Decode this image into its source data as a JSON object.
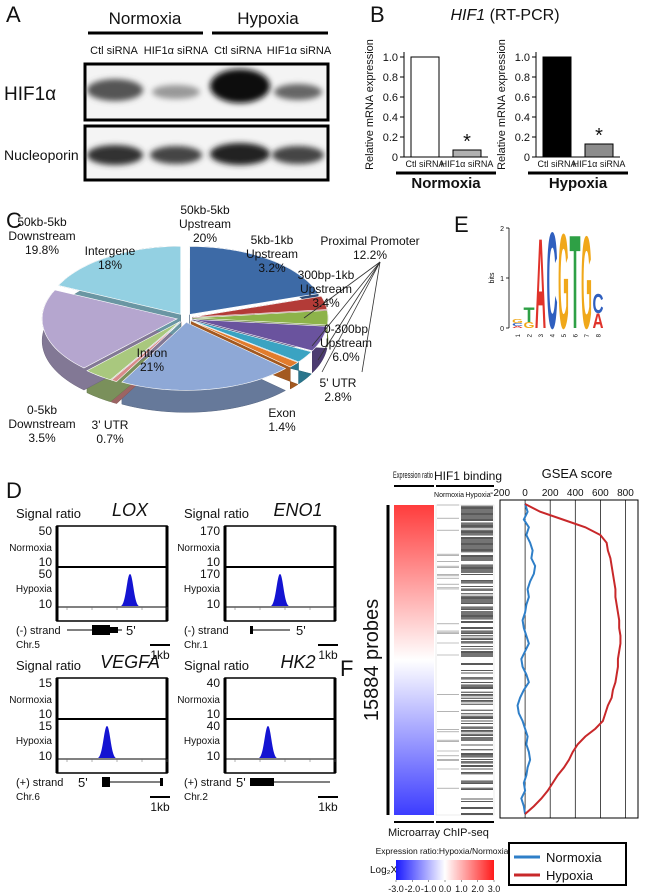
{
  "panel_labels": [
    "A",
    "B",
    "C",
    "D",
    "E",
    "F"
  ],
  "blot": {
    "conditions": [
      "Normoxia",
      "Hypoxia"
    ],
    "lanes": [
      "Ctl siRNA",
      "HIF1α siRNA",
      "Ctl siRNA",
      "HIF1α siRNA"
    ],
    "rows": [
      "HIF1α",
      "Nucleoporin"
    ]
  },
  "rtpcr_title": {
    "gene": "HIF1",
    "method": "(RT-PCR)"
  },
  "tracks": [
    {
      "gene": "LOX",
      "normoxia_ticks": [
        50,
        10
      ],
      "hypoxia_ticks": [
        50,
        10
      ],
      "strand": "(-) strand",
      "chr": "Chr.5"
    },
    {
      "gene": "ENO1",
      "normoxia_ticks": [
        170,
        10
      ],
      "hypoxia_ticks": [
        170,
        10
      ],
      "strand": "(-) strand",
      "chr": "Chr.1"
    },
    {
      "gene": "VEGFA",
      "normoxia_ticks": [
        15,
        10
      ],
      "hypoxia_ticks": [
        15,
        10
      ],
      "strand": "(+) strand",
      "chr": "Chr.6"
    },
    {
      "gene": "HK2",
      "normoxia_ticks": [
        40,
        10
      ],
      "hypoxia_ticks": [
        40,
        10
      ],
      "strand": "(+) strand",
      "chr": "Chr.2"
    }
  ],
  "track_labels": {
    "signal": "Signal ratio",
    "normoxia": "Normoxia",
    "hypoxia": "Hypoxia",
    "five_prime": "5'",
    "scale": "1kb"
  },
  "heatmap": {
    "expression_header": "Expression ratio",
    "binding_header": "HIF1 binding",
    "binding_columns": [
      "Normoxia",
      "Hypoxia"
    ],
    "probes": "15884 probes",
    "footers": [
      "Microarray",
      "ChIP-seq"
    ]
  },
  "chart_data": [
    {
      "type": "bar",
      "ylabel": "Relative mRNA expression",
      "categories": [
        "Ctl siRNA",
        "HIF1α siRNA"
      ],
      "values": [
        1.0,
        0.07
      ],
      "colors": [
        "#ffffff",
        "#b0b0b0"
      ],
      "ylim": [
        0,
        1.05
      ],
      "yticks": [
        0,
        0.2,
        0.4,
        0.6,
        0.8,
        {
          "value": 1,
          "label": "1.0"
        }
      ],
      "group": "Normoxia",
      "annotation": "*"
    },
    {
      "type": "bar",
      "ylabel": "Relative mRNA expression",
      "categories": [
        "Ctl siRNA",
        "HIF1α siRNA"
      ],
      "values": [
        1.0,
        0.13
      ],
      "colors": [
        "#000000",
        "#8c8c8c"
      ],
      "ylim": [
        0,
        1.05
      ],
      "yticks": [
        0,
        0.2,
        0.4,
        0.6,
        0.8,
        {
          "value": 1,
          "label": "1.0"
        }
      ],
      "group": "Hypoxia",
      "annotation": "*"
    },
    {
      "type": "pie",
      "categories": [
        "50kb-5kb Upstream",
        "5kb-1kb Upstream",
        "300bp-1kb Upstream",
        "0-300bp Upstream",
        "5' UTR",
        "Exon",
        "Intron",
        "3' UTR",
        "0-5kb Downstream",
        "50kb-5kb Downstream",
        "Intergene"
      ],
      "values": [
        20,
        3.2,
        3.4,
        6.0,
        2.8,
        1.4,
        21,
        0.7,
        3.5,
        19.8,
        18
      ],
      "value_labels": [
        "20%",
        "3.2%",
        "3.4%",
        "6.0%",
        "2.8%",
        "1.4%",
        "21%",
        "0.7%",
        "3.5%",
        "19.8%",
        "18%"
      ],
      "colors": [
        "#3d6aa6",
        "#b33b37",
        "#8db34a",
        "#6a539e",
        "#3aa3c2",
        "#e27c2c",
        "#8ea8d6",
        "#d88b8a",
        "#a9c87e",
        "#b5a6cf",
        "#93d0e2"
      ],
      "annotation": {
        "text": "Proximal Promoter",
        "value_label": "12.2%"
      }
    },
    {
      "type": "logo",
      "ylabel": "bits",
      "ylim": [
        0,
        2
      ],
      "yticks": [
        0,
        1,
        2
      ],
      "categories": [
        "1",
        "2",
        "3",
        "4",
        "5",
        "6",
        "7",
        "8"
      ],
      "stacks": [
        [
          {
            "letter": "A",
            "height": 0.04
          },
          {
            "letter": "C",
            "height": 0.06
          },
          {
            "letter": "G",
            "height": 0.08
          }
        ],
        [
          {
            "letter": "G",
            "height": 0.12
          },
          {
            "letter": "T",
            "height": 0.3
          }
        ],
        [
          {
            "letter": "A",
            "height": 1.85
          }
        ],
        [
          {
            "letter": "C",
            "height": 1.98
          }
        ],
        [
          {
            "letter": "G",
            "height": 1.95
          }
        ],
        [
          {
            "letter": "T",
            "height": 1.92
          }
        ],
        [
          {
            "letter": "G",
            "height": 1.9
          }
        ],
        [
          {
            "letter": "A",
            "height": 0.3
          },
          {
            "letter": "C",
            "height": 0.4
          }
        ]
      ],
      "letter_colors": {
        "A": "#e0332b",
        "C": "#2f5fbf",
        "G": "#f0a81a",
        "T": "#2ea045"
      }
    },
    {
      "type": "line",
      "title": "GSEA score",
      "xlim": [
        -200,
        900
      ],
      "xticks": [
        -200,
        0,
        200,
        400,
        600,
        800
      ],
      "grid": true,
      "series": [
        {
          "name": "Normoxia",
          "color": "#2f7fc8",
          "values": [
            0,
            20,
            -10,
            30,
            10,
            40,
            60,
            50,
            80,
            70,
            40,
            20,
            30,
            10,
            0,
            -20,
            -10,
            10,
            30,
            0,
            -30,
            -20,
            10,
            30,
            -10,
            -40,
            -60,
            -50,
            -20,
            0,
            20,
            10,
            30,
            40,
            20,
            10,
            -10,
            0,
            -30,
            -10,
            0
          ]
        },
        {
          "name": "Hypoxia",
          "color": "#c8282a",
          "values": [
            0,
            120,
            300,
            480,
            600,
            650,
            660,
            680,
            690,
            700,
            710,
            720,
            720,
            730,
            740,
            750,
            750,
            760,
            760,
            750,
            740,
            740,
            730,
            720,
            700,
            690,
            660,
            640,
            620,
            560,
            480,
            420,
            380,
            350,
            310,
            260,
            220,
            180,
            130,
            70,
            0
          ]
        }
      ]
    },
    {
      "type": "colorbar",
      "title": "Expression ratio:Hypoxia/Normoxia",
      "xlabel": "Log₂X",
      "xlim": [
        -3,
        3
      ],
      "xticks": [
        {
          "value": -3,
          "label": "-3.0"
        },
        {
          "value": -2,
          "label": "-2.0"
        },
        {
          "value": -1,
          "label": "-1.0"
        },
        {
          "value": 0,
          "label": "0.0"
        },
        {
          "value": 1,
          "label": "1.0"
        },
        {
          "value": 2,
          "label": "2.0"
        },
        {
          "value": 3,
          "label": "3.0"
        }
      ],
      "colors": [
        "#1a1aff",
        "#ffffff",
        "#ff1a1a"
      ]
    }
  ]
}
